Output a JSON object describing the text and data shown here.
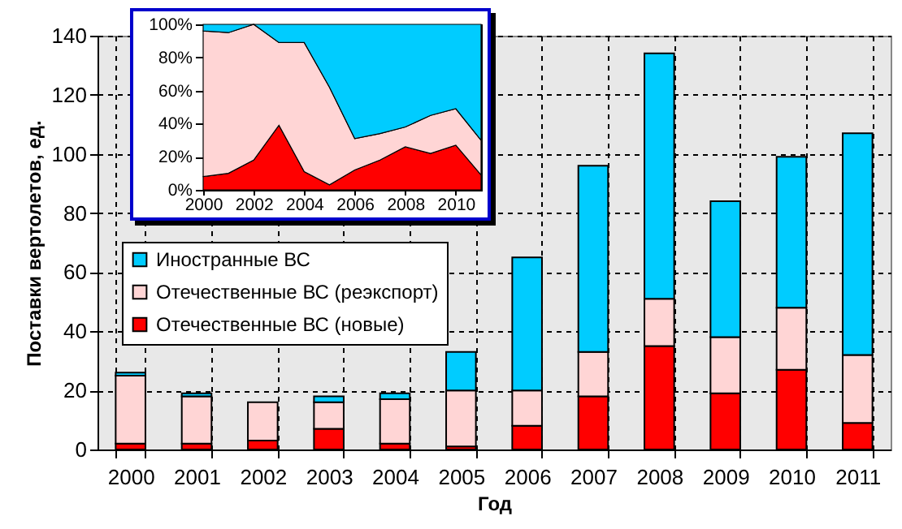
{
  "chart_data": [
    {
      "type": "bar",
      "stacked": true,
      "xlabel": "Год",
      "ylabel": "Поставки вертолетов, ед.",
      "categories": [
        "2000",
        "2001",
        "2002",
        "2003",
        "2004",
        "2005",
        "2006",
        "2007",
        "2008",
        "2009",
        "2010",
        "2011"
      ],
      "series": [
        {
          "name": "Отечественные ВС (новые)",
          "color": "#ff0000",
          "values": [
            2,
            2,
            3,
            7,
            2,
            1,
            8,
            18,
            35,
            19,
            27,
            9
          ]
        },
        {
          "name": "Отечественные ВС (реэкспорт)",
          "color": "#ffd5d5",
          "values": [
            23,
            16,
            13,
            9,
            15,
            19,
            12,
            15,
            16,
            19,
            21,
            23
          ]
        },
        {
          "name": "Иностранные ВС",
          "color": "#00ccff",
          "values": [
            1,
            1,
            null,
            2,
            2,
            13,
            45,
            63,
            83,
            46,
            51,
            75
          ]
        }
      ],
      "ylim": [
        0,
        140
      ],
      "yticks": [
        0,
        20,
        40,
        60,
        80,
        100,
        120,
        140
      ],
      "grid": true,
      "legend": "left"
    },
    {
      "type": "area",
      "stacked": true,
      "x": [
        2000,
        2001,
        2002,
        2003,
        2004,
        2005,
        2006,
        2007,
        2008,
        2009,
        2010,
        2011
      ],
      "series": [
        {
          "color": "#ff0000",
          "values": [
            8,
            10,
            18,
            39,
            11,
            3,
            12,
            18,
            26,
            22,
            27,
            9
          ]
        },
        {
          "color": "#ffd5d5",
          "values": [
            88,
            85,
            82,
            50,
            78,
            59,
            19,
            16,
            12,
            23,
            22,
            21
          ]
        },
        {
          "color": "#00ccff",
          "values": [
            4,
            5,
            0,
            11,
            11,
            38,
            69,
            66,
            62,
            55,
            51,
            70
          ]
        }
      ],
      "xlim": [
        2000,
        2011
      ],
      "xticks": [
        2000,
        2002,
        2004,
        2006,
        2008,
        2010
      ],
      "ylim": [
        0,
        100
      ],
      "yticks": [
        {
          "value": 0,
          "label": "0%"
        },
        {
          "value": 20,
          "label": "20%"
        },
        {
          "value": 40,
          "label": "40%"
        },
        {
          "value": 60,
          "label": "60%"
        },
        {
          "value": 80,
          "label": "80%"
        },
        {
          "value": 100,
          "label": "100%"
        }
      ]
    }
  ]
}
